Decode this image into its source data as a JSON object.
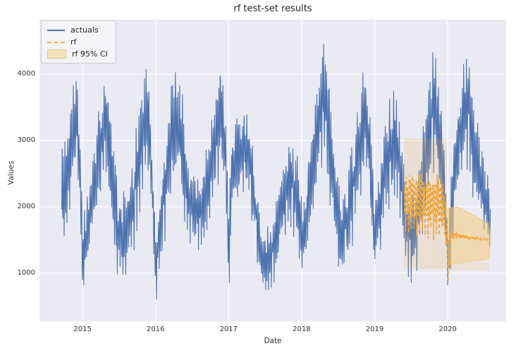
{
  "figure": {
    "title": "rf test-set results",
    "xlabel": "Date",
    "ylabel": "Values",
    "background": "#ffffff",
    "axes_background": "#eaeaf2",
    "grid_color": "#ffffff",
    "text_color": "#262626"
  },
  "legend": {
    "position": "upper left",
    "entries": [
      {
        "label": "actuals",
        "type": "line",
        "color": "#4c72b0"
      },
      {
        "label": "rf",
        "type": "dashed",
        "color": "#f3b152"
      },
      {
        "label": "rf 95% CI",
        "type": "patch",
        "color": "#f6e3bd",
        "edge": "#e5c88e"
      }
    ]
  },
  "chart_data": {
    "type": "line",
    "title": "rf test-set results",
    "xlabel": "Date",
    "ylabel": "Values",
    "grid": true,
    "legend_position": "upper left",
    "xlim": [
      2014.41,
      2020.8
    ],
    "ylim": [
      275,
      4820
    ],
    "x_ticks": [
      2015,
      2016,
      2017,
      2018,
      2019,
      2020
    ],
    "y_ticks": [
      1000,
      2000,
      3000,
      4000
    ],
    "series": [
      {
        "name": "actuals",
        "color": "#4c72b0",
        "style": "solid",
        "line_width": 1.1,
        "t_start": 2014.715,
        "t_end": 2020.585,
        "step_days": 2,
        "period_days": 7,
        "envelope": [
          [
            2014.715,
            1350,
            2950
          ],
          [
            2014.78,
            1600,
            3300
          ],
          [
            2014.85,
            2000,
            3800
          ],
          [
            2014.9,
            2300,
            4190
          ],
          [
            2014.96,
            1700,
            3700
          ],
          [
            2015.0,
            620,
            1900
          ],
          [
            2015.05,
            900,
            2200
          ],
          [
            2015.12,
            1300,
            2700
          ],
          [
            2015.2,
            1800,
            3400
          ],
          [
            2015.28,
            2200,
            4000
          ],
          [
            2015.33,
            2300,
            4180
          ],
          [
            2015.4,
            1700,
            3300
          ],
          [
            2015.48,
            950,
            2400
          ],
          [
            2015.55,
            800,
            2340
          ],
          [
            2015.62,
            900,
            2450
          ],
          [
            2015.7,
            1300,
            3000
          ],
          [
            2015.78,
            1900,
            3700
          ],
          [
            2015.86,
            2400,
            4250
          ],
          [
            2015.9,
            2400,
            4310
          ],
          [
            2015.95,
            1600,
            3300
          ],
          [
            2016.0,
            500,
            1700
          ],
          [
            2016.05,
            900,
            2300
          ],
          [
            2016.13,
            1500,
            3100
          ],
          [
            2016.22,
            2100,
            4000
          ],
          [
            2016.29,
            2400,
            4490
          ],
          [
            2016.36,
            2000,
            3900
          ],
          [
            2016.44,
            1500,
            3000
          ],
          [
            2016.52,
            1300,
            2550
          ],
          [
            2016.58,
            1290,
            2480
          ],
          [
            2016.66,
            1450,
            2750
          ],
          [
            2016.74,
            1800,
            3300
          ],
          [
            2016.82,
            2200,
            3900
          ],
          [
            2016.9,
            2500,
            4550
          ],
          [
            2016.96,
            1800,
            3600
          ],
          [
            2017.0,
            600,
            1900
          ],
          [
            2017.05,
            1800,
            3500
          ],
          [
            2017.12,
            2000,
            3600
          ],
          [
            2017.2,
            2100,
            3550
          ],
          [
            2017.28,
            2200,
            3450
          ],
          [
            2017.35,
            1400,
            2800
          ],
          [
            2017.43,
            800,
            1900
          ],
          [
            2017.5,
            660,
            1750
          ],
          [
            2017.58,
            700,
            1800
          ],
          [
            2017.66,
            1000,
            2300
          ],
          [
            2017.75,
            1400,
            2800
          ],
          [
            2017.85,
            1700,
            3050
          ],
          [
            2017.93,
            1400,
            3000
          ],
          [
            2018.02,
            790,
            2000
          ],
          [
            2018.08,
            1300,
            2700
          ],
          [
            2018.16,
            1900,
            3600
          ],
          [
            2018.24,
            2400,
            4300
          ],
          [
            2018.3,
            2600,
            4660
          ],
          [
            2018.38,
            2100,
            3900
          ],
          [
            2018.46,
            1400,
            2900
          ],
          [
            2018.54,
            850,
            2350
          ],
          [
            2018.62,
            1000,
            2550
          ],
          [
            2018.7,
            1400,
            3100
          ],
          [
            2018.78,
            1900,
            3700
          ],
          [
            2018.86,
            2400,
            4500
          ],
          [
            2018.92,
            2100,
            4000
          ],
          [
            2019.0,
            900,
            2300
          ],
          [
            2019.07,
            1300,
            2800
          ],
          [
            2019.15,
            1800,
            3400
          ],
          [
            2019.23,
            2100,
            3900
          ],
          [
            2019.28,
            2150,
            3950
          ],
          [
            2019.35,
            1700,
            3300
          ],
          [
            2019.42,
            1050,
            2500
          ],
          [
            2019.5,
            850,
            2230
          ],
          [
            2019.58,
            1000,
            2500
          ],
          [
            2019.66,
            1500,
            3300
          ],
          [
            2019.74,
            2100,
            4100
          ],
          [
            2019.82,
            2500,
            4640
          ],
          [
            2019.88,
            2300,
            4400
          ],
          [
            2019.94,
            1500,
            3200
          ],
          [
            2020.0,
            660,
            1800
          ],
          [
            2020.06,
            1300,
            2800
          ],
          [
            2020.14,
            2000,
            3800
          ],
          [
            2020.22,
            2400,
            4400
          ],
          [
            2020.28,
            2600,
            4590
          ],
          [
            2020.35,
            2100,
            4000
          ],
          [
            2020.43,
            1700,
            3300
          ],
          [
            2020.5,
            1450,
            2800
          ],
          [
            2020.585,
            1250,
            2400
          ]
        ]
      },
      {
        "name": "rf",
        "color": "#efa63d",
        "style": "dashed",
        "line_width": 1.6,
        "dash": "5 3.5",
        "t_start": 2019.408,
        "t_end": 2020.585,
        "step_days": 2,
        "period_days": 7,
        "path": [
          [
            2019.408,
            2080,
            540
          ],
          [
            2019.55,
            2070,
            565
          ],
          [
            2019.7,
            2070,
            570
          ],
          [
            2019.85,
            2060,
            570
          ],
          [
            2019.93,
            2040,
            560
          ],
          [
            2019.97,
            1850,
            450
          ],
          [
            2019.995,
            1400,
            350
          ],
          [
            2020.005,
            850,
            120
          ],
          [
            2020.02,
            1520,
            90
          ],
          [
            2020.05,
            1560,
            70
          ],
          [
            2020.1,
            1570,
            60
          ],
          [
            2020.18,
            1555,
            45
          ],
          [
            2020.28,
            1530,
            30
          ],
          [
            2020.38,
            1525,
            22
          ],
          [
            2020.48,
            1515,
            15
          ],
          [
            2020.585,
            1505,
            12
          ]
        ]
      },
      {
        "name": "rf 95% CI",
        "stripe_color": "rgba(235,170,72,0.32)",
        "band_fill": "rgba(244,203,122,0.55)",
        "band_edge": "rgba(230,160,55,0.75)",
        "striped_region": {
          "t0": 2019.408,
          "t1": 2019.995,
          "lo": 1065,
          "hi": 3030
        },
        "funnel_region": {
          "t0": 2019.995,
          "t1": 2020.05,
          "lo": 1085,
          "hi": 1990
        },
        "band_top": [
          [
            2020.0,
            1950
          ],
          [
            2020.06,
            2000
          ],
          [
            2020.14,
            1995
          ],
          [
            2020.22,
            1950
          ],
          [
            2020.3,
            1905
          ],
          [
            2020.38,
            1855
          ],
          [
            2020.46,
            1805
          ],
          [
            2020.52,
            1780
          ],
          [
            2020.56,
            1760
          ],
          [
            2020.585,
            1620
          ]
        ],
        "band_bottom": [
          [
            2020.0,
            1110
          ],
          [
            2020.08,
            1135
          ],
          [
            2020.18,
            1150
          ],
          [
            2020.3,
            1165
          ],
          [
            2020.42,
            1180
          ],
          [
            2020.52,
            1192
          ],
          [
            2020.57,
            1210
          ],
          [
            2020.585,
            1330
          ]
        ],
        "fringe": {
          "t0": 2020.0,
          "t1": 2020.575,
          "lo": 1040,
          "hi": 1165
        }
      }
    ]
  }
}
